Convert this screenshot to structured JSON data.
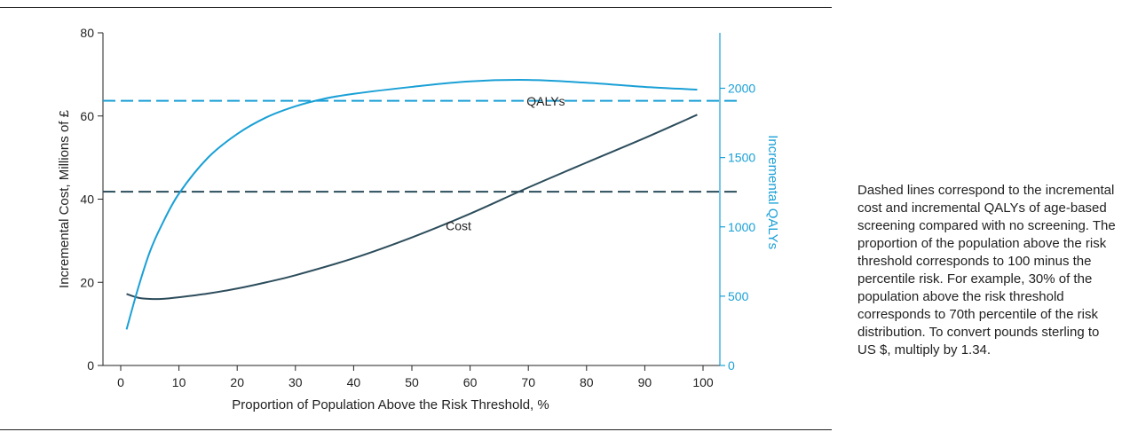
{
  "chart_data": {
    "type": "line",
    "xlabel": "Proportion of Population Above the Risk Threshold, %",
    "ylabel": "Incremental Cost, Millions of £",
    "y2label": "Incremental QALYs",
    "xlim": [
      0,
      100
    ],
    "ylim": [
      0,
      80
    ],
    "y2lim": [
      0,
      2400
    ],
    "x_ticks": [
      0,
      10,
      20,
      30,
      40,
      50,
      60,
      70,
      80,
      90,
      100
    ],
    "y_ticks": [
      0,
      20,
      40,
      60,
      80
    ],
    "y2_ticks": [
      0,
      500,
      1000,
      1500,
      2000
    ],
    "grid": false,
    "series": [
      {
        "name": "Cost",
        "axis": "left",
        "color": "#2d4d5c",
        "x": [
          1,
          3,
          5,
          7,
          10,
          15,
          20,
          25,
          30,
          40,
          50,
          60,
          70,
          80,
          90,
          99
        ],
        "y": [
          17.2,
          16.3,
          16.0,
          16.0,
          16.4,
          17.3,
          18.5,
          20.0,
          21.7,
          25.8,
          30.8,
          36.5,
          42.8,
          48.8,
          54.7,
          60.3
        ]
      },
      {
        "name": "QALYs",
        "axis": "right",
        "color": "#1aa0d6",
        "x": [
          1,
          3,
          5,
          7,
          10,
          15,
          20,
          25,
          30,
          35,
          40,
          50,
          60,
          70,
          80,
          90,
          99
        ],
        "y": [
          260,
          560,
          820,
          1010,
          1240,
          1500,
          1670,
          1790,
          1870,
          1925,
          1960,
          2010,
          2050,
          2060,
          2040,
          2010,
          1990
        ]
      }
    ],
    "reference_lines": [
      {
        "axis": "right",
        "y": 1910,
        "color": "#1aa0d6",
        "style": "dashed"
      },
      {
        "axis": "left",
        "y": 41.8,
        "color": "#2d4d5c",
        "style": "dashed"
      }
    ],
    "annotations": [
      {
        "text": "QALYs",
        "x": 73,
        "y": 62.5
      },
      {
        "text": "Cost",
        "x": 58,
        "y": 32.5
      }
    ]
  },
  "note": "Dashed lines correspond to the incremental cost and incremental QALYs of age-based screening compared with no screening. The proportion of the population above the risk threshold corresponds to 100 minus the percentile risk. For example, 30% of the population above the risk threshold corresponds to 70th percentile of the risk distribution. To convert pounds sterling to US $, multiply by 1.34."
}
